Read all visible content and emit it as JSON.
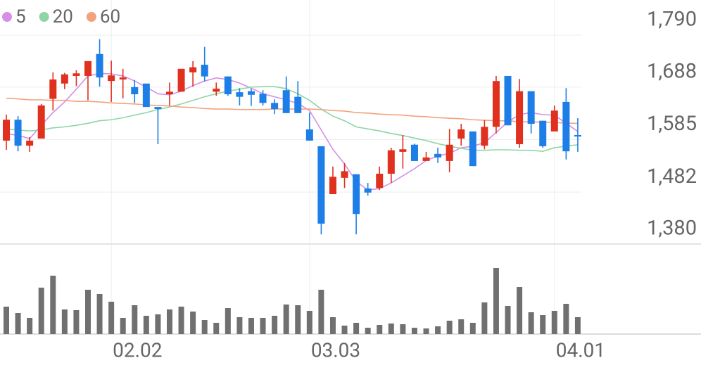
{
  "chart_data": {
    "type": "candlestick",
    "categories": [
      null,
      null,
      null,
      null,
      null,
      null,
      null,
      null,
      null,
      "02.02",
      null,
      null,
      null,
      null,
      null,
      null,
      null,
      null,
      null,
      null,
      null,
      null,
      null,
      null,
      null,
      null,
      "03.03",
      null,
      null,
      null,
      null,
      null,
      null,
      null,
      null,
      null,
      null,
      null,
      null,
      null,
      null,
      null,
      null,
      null,
      null,
      null,
      null,
      "04.01",
      null,
      null
    ],
    "open": [
      1583,
      1624,
      1573,
      1587,
      1665,
      1695,
      1710,
      1710,
      1753,
      1700,
      1703,
      1688,
      1695,
      1649,
      1674,
      1679,
      1717,
      1732,
      1679,
      1709,
      1678,
      1680,
      1675,
      1657,
      1682,
      1669,
      1605,
      1572,
      1478,
      1510,
      1517,
      1489,
      1490,
      1518,
      1561,
      1575,
      1543,
      1557,
      1543,
      1587,
      1601,
      1573,
      1610,
      1710,
      1576,
      1680,
      1622,
      1601,
      1659,
      1594
    ],
    "high": [
      1634,
      1631,
      1590,
      1655,
      1717,
      1716,
      1721,
      1739,
      1782,
      1740,
      1724,
      1702,
      1695,
      1649,
      1697,
      1724,
      1739,
      1767,
      1697,
      1709,
      1686,
      1685,
      1682,
      1664,
      1709,
      1700,
      1638,
      1572,
      1532,
      1539,
      1517,
      1500,
      1532,
      1569,
      1594,
      1577,
      1561,
      1569,
      1606,
      1616,
      1601,
      1623,
      1710,
      1710,
      1704,
      1680,
      1622,
      1652,
      1686,
      1627
    ],
    "low": [
      1565,
      1562,
      1561,
      1587,
      1642,
      1684,
      1690,
      1662,
      1689,
      1659,
      1666,
      1657,
      1649,
      1576,
      1652,
      1679,
      1689,
      1699,
      1671,
      1671,
      1652,
      1651,
      1652,
      1635,
      1637,
      1637,
      1583,
      1399,
      1478,
      1490,
      1399,
      1475,
      1486,
      1500,
      1528,
      1543,
      1543,
      1539,
      1521,
      1573,
      1533,
      1566,
      1597,
      1613,
      1569,
      1597,
      1569,
      1601,
      1546,
      1561
    ],
    "close": [
      1624,
      1573,
      1583,
      1652,
      1703,
      1713,
      1715,
      1739,
      1707,
      1711,
      1707,
      1674,
      1649,
      1645,
      1679,
      1724,
      1727,
      1709,
      1685,
      1674,
      1669,
      1673,
      1657,
      1645,
      1637,
      1637,
      1583,
      1420,
      1512,
      1523,
      1439,
      1481,
      1518,
      1564,
      1566,
      1543,
      1550,
      1550,
      1575,
      1605,
      1533,
      1610,
      1700,
      1613,
      1680,
      1616,
      1572,
      1642,
      1562,
      1591
    ],
    "up_color": "#e0301e",
    "down_color": "#1c7ee6",
    "ylim": [
      1380,
      1790
    ],
    "yticks": [
      {
        "value": 1790,
        "label": "1,790"
      },
      {
        "value": 1688,
        "label": "1,688"
      },
      {
        "value": 1585,
        "label": "1,585"
      },
      {
        "value": 1482,
        "label": "1,482"
      },
      {
        "value": 1380,
        "label": "1,380"
      }
    ],
    "series": [
      {
        "name": "5",
        "color": "#d68fe6",
        "values": [
          1597,
          1593,
          1587,
          1613,
          1638,
          1659,
          1684,
          1710,
          1715,
          1714,
          1710,
          1700,
          1688,
          1675,
          1673,
          1680,
          1691,
          1700,
          1706,
          1703,
          1696,
          1686,
          1675,
          1669,
          1663,
          1656,
          1642,
          1604,
          1566,
          1537,
          1503,
          1486,
          1489,
          1500,
          1514,
          1528,
          1544,
          1553,
          1558,
          1569,
          1572,
          1579,
          1599,
          1620,
          1634,
          1638,
          1634,
          1633,
          1617,
          1601
        ]
      },
      {
        "name": "20",
        "color": "#8ed6a5",
        "values": [
          1606,
          1604,
          1602,
          1604,
          1608,
          1610,
          1613,
          1617,
          1622,
          1624,
          1628,
          1633,
          1638,
          1644,
          1649,
          1655,
          1662,
          1669,
          1675,
          1680,
          1684,
          1688,
          1689,
          1689,
          1685,
          1675,
          1662,
          1645,
          1631,
          1622,
          1610,
          1606,
          1602,
          1597,
          1593,
          1588,
          1583,
          1577,
          1572,
          1568,
          1564,
          1564,
          1565,
          1565,
          1564,
          1564,
          1562,
          1569,
          1572,
          1575
        ]
      },
      {
        "name": "60",
        "color": "#f2a27c",
        "values": [
          1666,
          1665,
          1663,
          1663,
          1662,
          1662,
          1660,
          1660,
          1659,
          1657,
          1656,
          1655,
          1653,
          1652,
          1651,
          1649,
          1648,
          1646,
          1645,
          1645,
          1644,
          1644,
          1644,
          1645,
          1645,
          1645,
          1645,
          1644,
          1642,
          1641,
          1638,
          1637,
          1635,
          1634,
          1633,
          1631,
          1630,
          1628,
          1627,
          1626,
          1624,
          1623,
          1622,
          1622,
          1620,
          1620,
          1619,
          1619,
          1617,
          1617
        ]
      }
    ],
    "volume": {
      "color": "#707070",
      "vlim": [
        0,
        100
      ],
      "values": [
        39,
        30,
        23,
        66,
        83,
        35,
        34,
        63,
        57,
        46,
        23,
        41,
        26,
        28,
        35,
        39,
        32,
        20,
        16,
        37,
        24,
        23,
        23,
        26,
        42,
        41,
        33,
        63,
        24,
        12,
        16,
        9,
        13,
        15,
        14,
        9,
        8,
        11,
        19,
        21,
        16,
        45,
        94,
        40,
        67,
        31,
        27,
        33,
        43,
        24
      ]
    },
    "grid": true
  }
}
